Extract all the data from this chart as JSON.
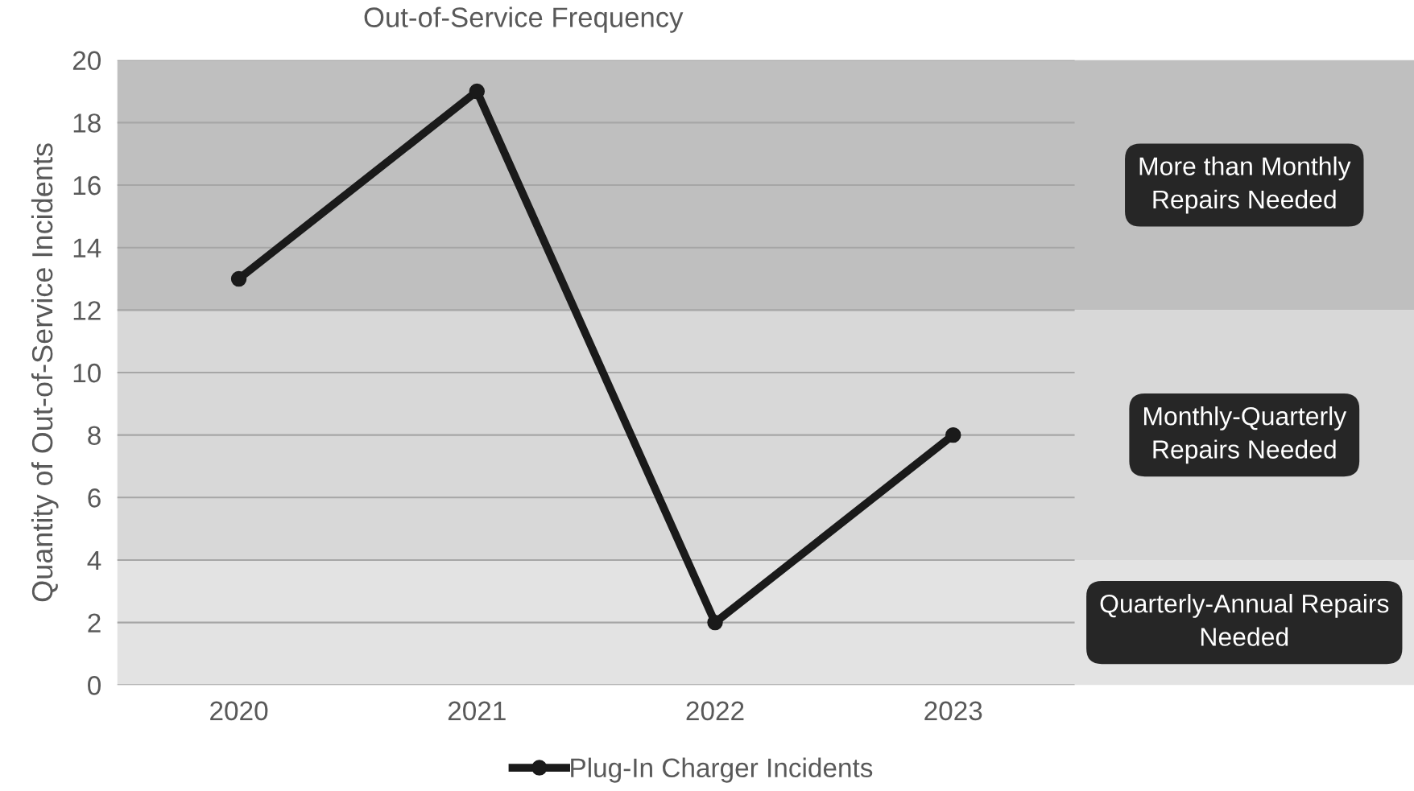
{
  "chart_data": {
    "type": "line",
    "title": "Out-of-Service Frequency",
    "ylabel": "Quantity of Out-of-Service Incidents",
    "categories": [
      "2020",
      "2021",
      "2022",
      "2023"
    ],
    "series": [
      {
        "name": "Plug-In Charger Incidents",
        "color": "#1a1a1a",
        "values": [
          13,
          19,
          2,
          8
        ]
      }
    ],
    "ylim": [
      0,
      20
    ],
    "yticks": [
      0,
      2,
      4,
      6,
      8,
      10,
      12,
      14,
      16,
      18,
      20
    ],
    "grid": "y",
    "legend": "bottom",
    "marker": "circle",
    "line_style": "solid",
    "bands": [
      {
        "axis": "y",
        "from": 0,
        "to": 4,
        "label": "Quarterly-Annual Repairs\nNeeded",
        "color": "#e3e3e3"
      },
      {
        "axis": "y",
        "from": 4,
        "to": 12,
        "label": "Monthly-Quarterly\nRepairs Needed",
        "color": "#d8d8d8"
      },
      {
        "axis": "y",
        "from": 12,
        "to": 20,
        "label": "More than Monthly\nRepairs Needed",
        "color": "#bfbfbf"
      }
    ]
  }
}
